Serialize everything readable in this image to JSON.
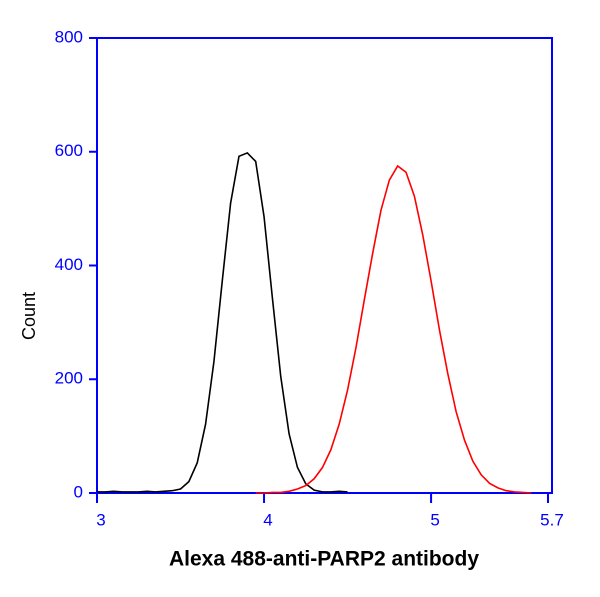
{
  "chart_data": {
    "type": "line",
    "x_label": "Alexa 488-anti-PARP2 antibody",
    "y_label": "Count",
    "x": [
      3.0,
      3.05,
      3.1,
      3.15,
      3.2,
      3.25,
      3.3,
      3.35,
      3.4,
      3.45,
      3.5,
      3.55,
      3.6,
      3.65,
      3.7,
      3.75,
      3.8,
      3.85,
      3.9,
      3.95,
      4.0,
      4.05,
      4.1,
      4.15,
      4.2,
      4.25,
      4.3,
      4.35,
      4.4,
      4.45,
      4.5,
      4.55,
      4.6,
      4.65,
      4.7,
      4.75,
      4.8,
      4.85,
      4.9,
      4.95,
      5.0,
      5.05,
      5.1,
      5.15,
      5.2,
      5.25,
      5.3,
      5.35,
      5.4,
      5.45,
      5.5,
      5.55,
      5.6,
      5.65,
      5.7
    ],
    "series": [
      {
        "color": "#000000",
        "values": [
          2,
          2,
          3,
          2,
          2,
          2,
          3,
          2,
          3,
          4,
          7,
          20,
          53,
          121,
          231,
          373,
          510,
          592,
          598,
          583,
          486,
          343,
          205,
          104,
          45,
          16,
          5,
          2,
          2,
          3,
          2,
          null,
          null,
          null,
          null,
          null,
          null,
          null,
          null,
          null,
          null,
          null,
          null,
          null,
          null,
          null,
          null,
          null,
          null,
          null,
          null,
          null,
          null,
          null,
          null
        ]
      },
      {
        "color": "#ff0000",
        "values": [
          null,
          null,
          null,
          null,
          null,
          null,
          null,
          null,
          null,
          null,
          null,
          null,
          null,
          null,
          null,
          null,
          null,
          null,
          null,
          0,
          0,
          1,
          1,
          3,
          7,
          13,
          25,
          45,
          76,
          121,
          181,
          255,
          339,
          421,
          497,
          550,
          575,
          564,
          522,
          454,
          373,
          287,
          210,
          143,
          93,
          56,
          32,
          17,
          9,
          4,
          2,
          1,
          0,
          null,
          null
        ]
      }
    ],
    "xlim": [
      3,
      5.7
    ],
    "xticks": [
      3,
      4,
      5,
      5.7
    ],
    "ylim": [
      0,
      800
    ],
    "yticks": [
      0,
      200,
      400,
      600,
      800
    ],
    "axis_color": "#0000ff"
  }
}
